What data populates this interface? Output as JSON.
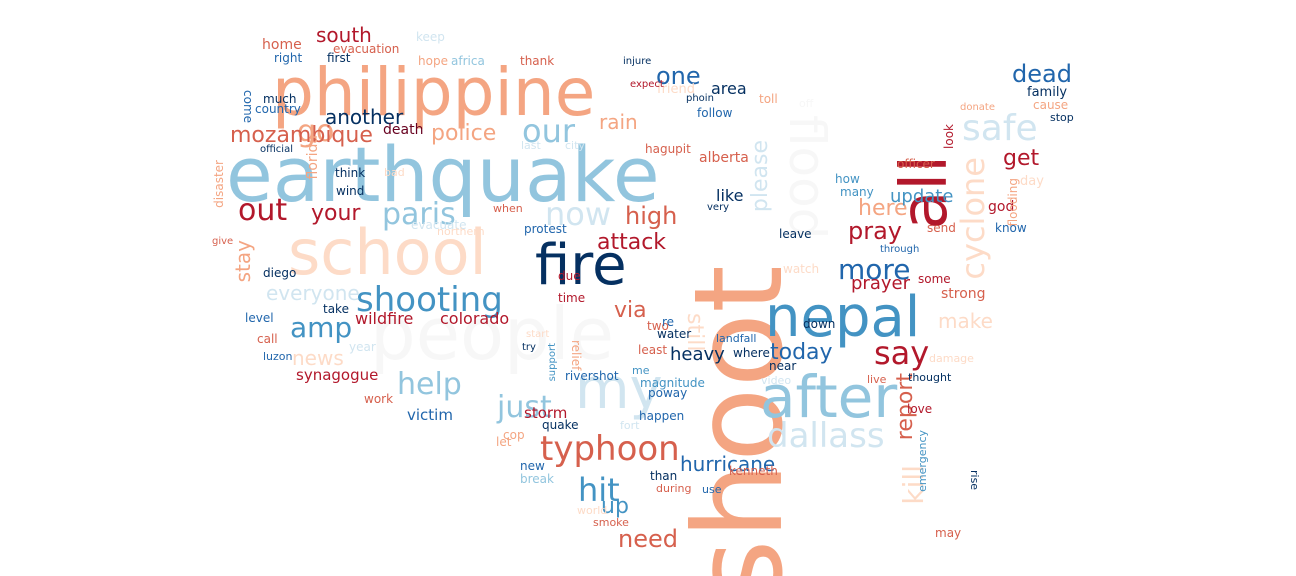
{
  "words": [
    {
      "text": "shoot",
      "color": "#f4a582"
    },
    {
      "text": "earthquake",
      "color": "#92c5de"
    },
    {
      "text": "philippine",
      "color": "#f4a582"
    },
    {
      "text": "school",
      "color": "#fddbc7"
    },
    {
      "text": "people",
      "color": "#f7f7f7"
    },
    {
      "text": "fire",
      "color": "#053061"
    },
    {
      "text": "nepal",
      "color": "#4393c3"
    },
    {
      "text": "all",
      "color": "#b2182b"
    },
    {
      "text": "flood",
      "color": "#f7f7f7"
    },
    {
      "text": "after",
      "color": "#92c5de"
    },
    {
      "text": "my",
      "color": "#d1e5f0"
    },
    {
      "text": "shooting",
      "color": "#4393c3"
    },
    {
      "text": "typhoon",
      "color": "#d6604d"
    },
    {
      "text": "dallass",
      "color": "#d1e5f0"
    },
    {
      "text": "safe",
      "color": "#d1e5f0"
    },
    {
      "text": "cyclone",
      "color": "#fddbc7"
    },
    {
      "text": "paris",
      "color": "#92c5de"
    },
    {
      "text": "now",
      "color": "#d1e5f0"
    },
    {
      "text": "help",
      "color": "#92c5de"
    },
    {
      "text": "just",
      "color": "#92c5de"
    },
    {
      "text": "out",
      "color": "#b2182b"
    },
    {
      "text": "our",
      "color": "#92c5de"
    },
    {
      "text": "amp",
      "color": "#4393c3"
    },
    {
      "text": "hit",
      "color": "#4393c3"
    },
    {
      "text": "say",
      "color": "#b2182b"
    },
    {
      "text": "more",
      "color": "#2166ac"
    },
    {
      "text": "go",
      "color": "#f4a582"
    },
    {
      "text": "dead",
      "color": "#2166ac"
    },
    {
      "text": "mozambique",
      "color": "#d6604d"
    },
    {
      "text": "attack",
      "color": "#b2182b"
    },
    {
      "text": "everyone",
      "color": "#d1e5f0"
    },
    {
      "text": "your",
      "color": "#b2182b"
    },
    {
      "text": "police",
      "color": "#f4a582"
    },
    {
      "text": "rain",
      "color": "#f4a582"
    },
    {
      "text": "one",
      "color": "#2166ac"
    },
    {
      "text": "high",
      "color": "#d6604d"
    },
    {
      "text": "south",
      "color": "#b2182b"
    },
    {
      "text": "need",
      "color": "#d6604d"
    },
    {
      "text": "report",
      "color": "#d6604d"
    },
    {
      "text": "kill",
      "color": "#fddbc7"
    },
    {
      "text": "please",
      "color": "#d1e5f0"
    },
    {
      "text": "get",
      "color": "#b2182b"
    },
    {
      "text": "today",
      "color": "#2166ac"
    },
    {
      "text": "pray",
      "color": "#b2182b"
    },
    {
      "text": "here",
      "color": "#f4a582"
    },
    {
      "text": "hurricane",
      "color": "#2166ac"
    },
    {
      "text": "stay",
      "color": "#f4a582"
    },
    {
      "text": "via",
      "color": "#d6604d"
    },
    {
      "text": "still",
      "color": "#fddbc7"
    },
    {
      "text": "up",
      "color": "#4393c3"
    },
    {
      "text": "another",
      "color": "#053061"
    },
    {
      "text": "news",
      "color": "#fddbc7"
    },
    {
      "text": "make",
      "color": "#fddbc7"
    },
    {
      "text": "update",
      "color": "#4393c3"
    },
    {
      "text": "prayer",
      "color": "#b2182b"
    },
    {
      "text": "heavy",
      "color": "#053061"
    },
    {
      "text": "wildfire",
      "color": "#b2182b"
    },
    {
      "text": "colorado",
      "color": "#b2182b"
    },
    {
      "text": "like",
      "color": "#053061"
    },
    {
      "text": "area",
      "color": "#053061"
    },
    {
      "text": "alberta",
      "color": "#d6604d"
    },
    {
      "text": "florida",
      "color": "#f4a582"
    },
    {
      "text": "synagogue",
      "color": "#b2182b"
    },
    {
      "text": "storm",
      "color": "#b2182b"
    },
    {
      "text": "victim",
      "color": "#2166ac"
    },
    {
      "text": "family",
      "color": "#053061"
    },
    {
      "text": "strong",
      "color": "#d6604d"
    },
    {
      "text": "god",
      "color": "#b2182b"
    },
    {
      "text": "death",
      "color": "#67001f"
    },
    {
      "text": "home",
      "color": "#d6604d"
    },
    {
      "text": "evacuation",
      "color": "#d6604d"
    },
    {
      "text": "right",
      "color": "#2166ac"
    },
    {
      "text": "first",
      "color": "#053061"
    },
    {
      "text": "hope",
      "color": "#f4a582"
    },
    {
      "text": "africa",
      "color": "#92c5de"
    },
    {
      "text": "thank",
      "color": "#d6604d"
    },
    {
      "text": "much",
      "color": "#053061"
    },
    {
      "text": "country",
      "color": "#2166ac"
    },
    {
      "text": "come",
      "color": "#2166ac"
    },
    {
      "text": "follow",
      "color": "#2166ac"
    },
    {
      "text": "toll",
      "color": "#f4a582"
    },
    {
      "text": "hagupit",
      "color": "#d6604d"
    },
    {
      "text": "officer",
      "color": "#d6604d"
    },
    {
      "text": "flooding",
      "color": "#f4a582"
    },
    {
      "text": "think",
      "color": "#053061"
    },
    {
      "text": "wind",
      "color": "#053061"
    },
    {
      "text": "disaster",
      "color": "#f4a582"
    },
    {
      "text": "evacuate",
      "color": "#d1e5f0"
    },
    {
      "text": "protest",
      "color": "#2166ac"
    },
    {
      "text": "when",
      "color": "#d6604d"
    },
    {
      "text": "leave",
      "color": "#053061"
    },
    {
      "text": "send",
      "color": "#d6604d"
    },
    {
      "text": "know",
      "color": "#2166ac"
    },
    {
      "text": "diego",
      "color": "#053061"
    },
    {
      "text": "level",
      "color": "#2166ac"
    },
    {
      "text": "take",
      "color": "#053061"
    },
    {
      "text": "time",
      "color": "#b2182b"
    },
    {
      "text": "water",
      "color": "#053061"
    },
    {
      "text": "two",
      "color": "#d6604d"
    },
    {
      "text": "least",
      "color": "#d6604d"
    },
    {
      "text": "landfall",
      "color": "#2166ac"
    },
    {
      "text": "where",
      "color": "#053061"
    },
    {
      "text": "near",
      "color": "#053061"
    },
    {
      "text": "down",
      "color": "#053061"
    },
    {
      "text": "some",
      "color": "#b2182b"
    },
    {
      "text": "damage",
      "color": "#fddbc7"
    },
    {
      "text": "thought",
      "color": "#053061"
    },
    {
      "text": "love",
      "color": "#b2182b"
    },
    {
      "text": "emergency",
      "color": "#4393c3"
    },
    {
      "text": "may",
      "color": "#d6604d"
    },
    {
      "text": "magnitude",
      "color": "#4393c3"
    },
    {
      "text": "poway",
      "color": "#2166ac"
    },
    {
      "text": "happen",
      "color": "#2166ac"
    },
    {
      "text": "quake",
      "color": "#053061"
    },
    {
      "text": "cop",
      "color": "#f4a582"
    },
    {
      "text": "let",
      "color": "#f4a582"
    },
    {
      "text": "new",
      "color": "#2166ac"
    },
    {
      "text": "break",
      "color": "#92c5de"
    },
    {
      "text": "smoke",
      "color": "#d6604d"
    },
    {
      "text": "kenneth",
      "color": "#d6604d"
    },
    {
      "text": "during",
      "color": "#d6604d"
    },
    {
      "text": "than",
      "color": "#053061"
    },
    {
      "text": "use",
      "color": "#2166ac"
    },
    {
      "text": "call",
      "color": "#d6604d"
    },
    {
      "text": "luzon",
      "color": "#2166ac"
    },
    {
      "text": "work",
      "color": "#d6604d"
    },
    {
      "text": "rivershot",
      "color": "#2166ac"
    },
    {
      "text": "relief",
      "color": "#f4a582"
    },
    {
      "text": "video",
      "color": "#d1e5f0"
    },
    {
      "text": "live",
      "color": "#d6604d"
    },
    {
      "text": "fort",
      "color": "#d1e5f0"
    },
    {
      "text": "rise",
      "color": "#053061"
    },
    {
      "text": "look",
      "color": "#b2182b"
    },
    {
      "text": "day",
      "color": "#fddbc7"
    },
    {
      "text": "cause",
      "color": "#f4a582"
    },
    {
      "text": "stop",
      "color": "#053061"
    },
    {
      "text": "donate",
      "color": "#f4a582"
    },
    {
      "text": "keep",
      "color": "#d1e5f0"
    },
    {
      "text": "friend",
      "color": "#fddbc7"
    },
    {
      "text": "expect",
      "color": "#b2182b"
    },
    {
      "text": "injure",
      "color": "#053061"
    },
    {
      "text": "phoin",
      "color": "#053061"
    },
    {
      "text": "city",
      "color": "#d1e5f0"
    },
    {
      "text": "last",
      "color": "#d1e5f0"
    },
    {
      "text": "how",
      "color": "#4393c3"
    },
    {
      "text": "many",
      "color": "#4393c3"
    },
    {
      "text": "watch",
      "color": "#fddbc7"
    },
    {
      "text": "re",
      "color": "#2166ac"
    },
    {
      "text": "northern",
      "color": "#fddbc7"
    },
    {
      "text": "due",
      "color": "#b2182b"
    },
    {
      "text": "support",
      "color": "#4393c3"
    },
    {
      "text": "bad",
      "color": "#fddbc7"
    },
    {
      "text": "give",
      "color": "#d6604d"
    },
    {
      "text": "year",
      "color": "#d1e5f0"
    },
    {
      "text": "start",
      "color": "#fddbc7"
    },
    {
      "text": "official",
      "color": "#053061"
    },
    {
      "text": "try",
      "color": "#053061"
    },
    {
      "text": "me",
      "color": "#4393c3"
    },
    {
      "text": "very",
      "color": "#053061"
    },
    {
      "text": "off",
      "color": "#f7f7f7"
    },
    {
      "text": "through",
      "color": "#2166ac"
    },
    {
      "text": "world",
      "color": "#fddbc7"
    }
  ]
}
